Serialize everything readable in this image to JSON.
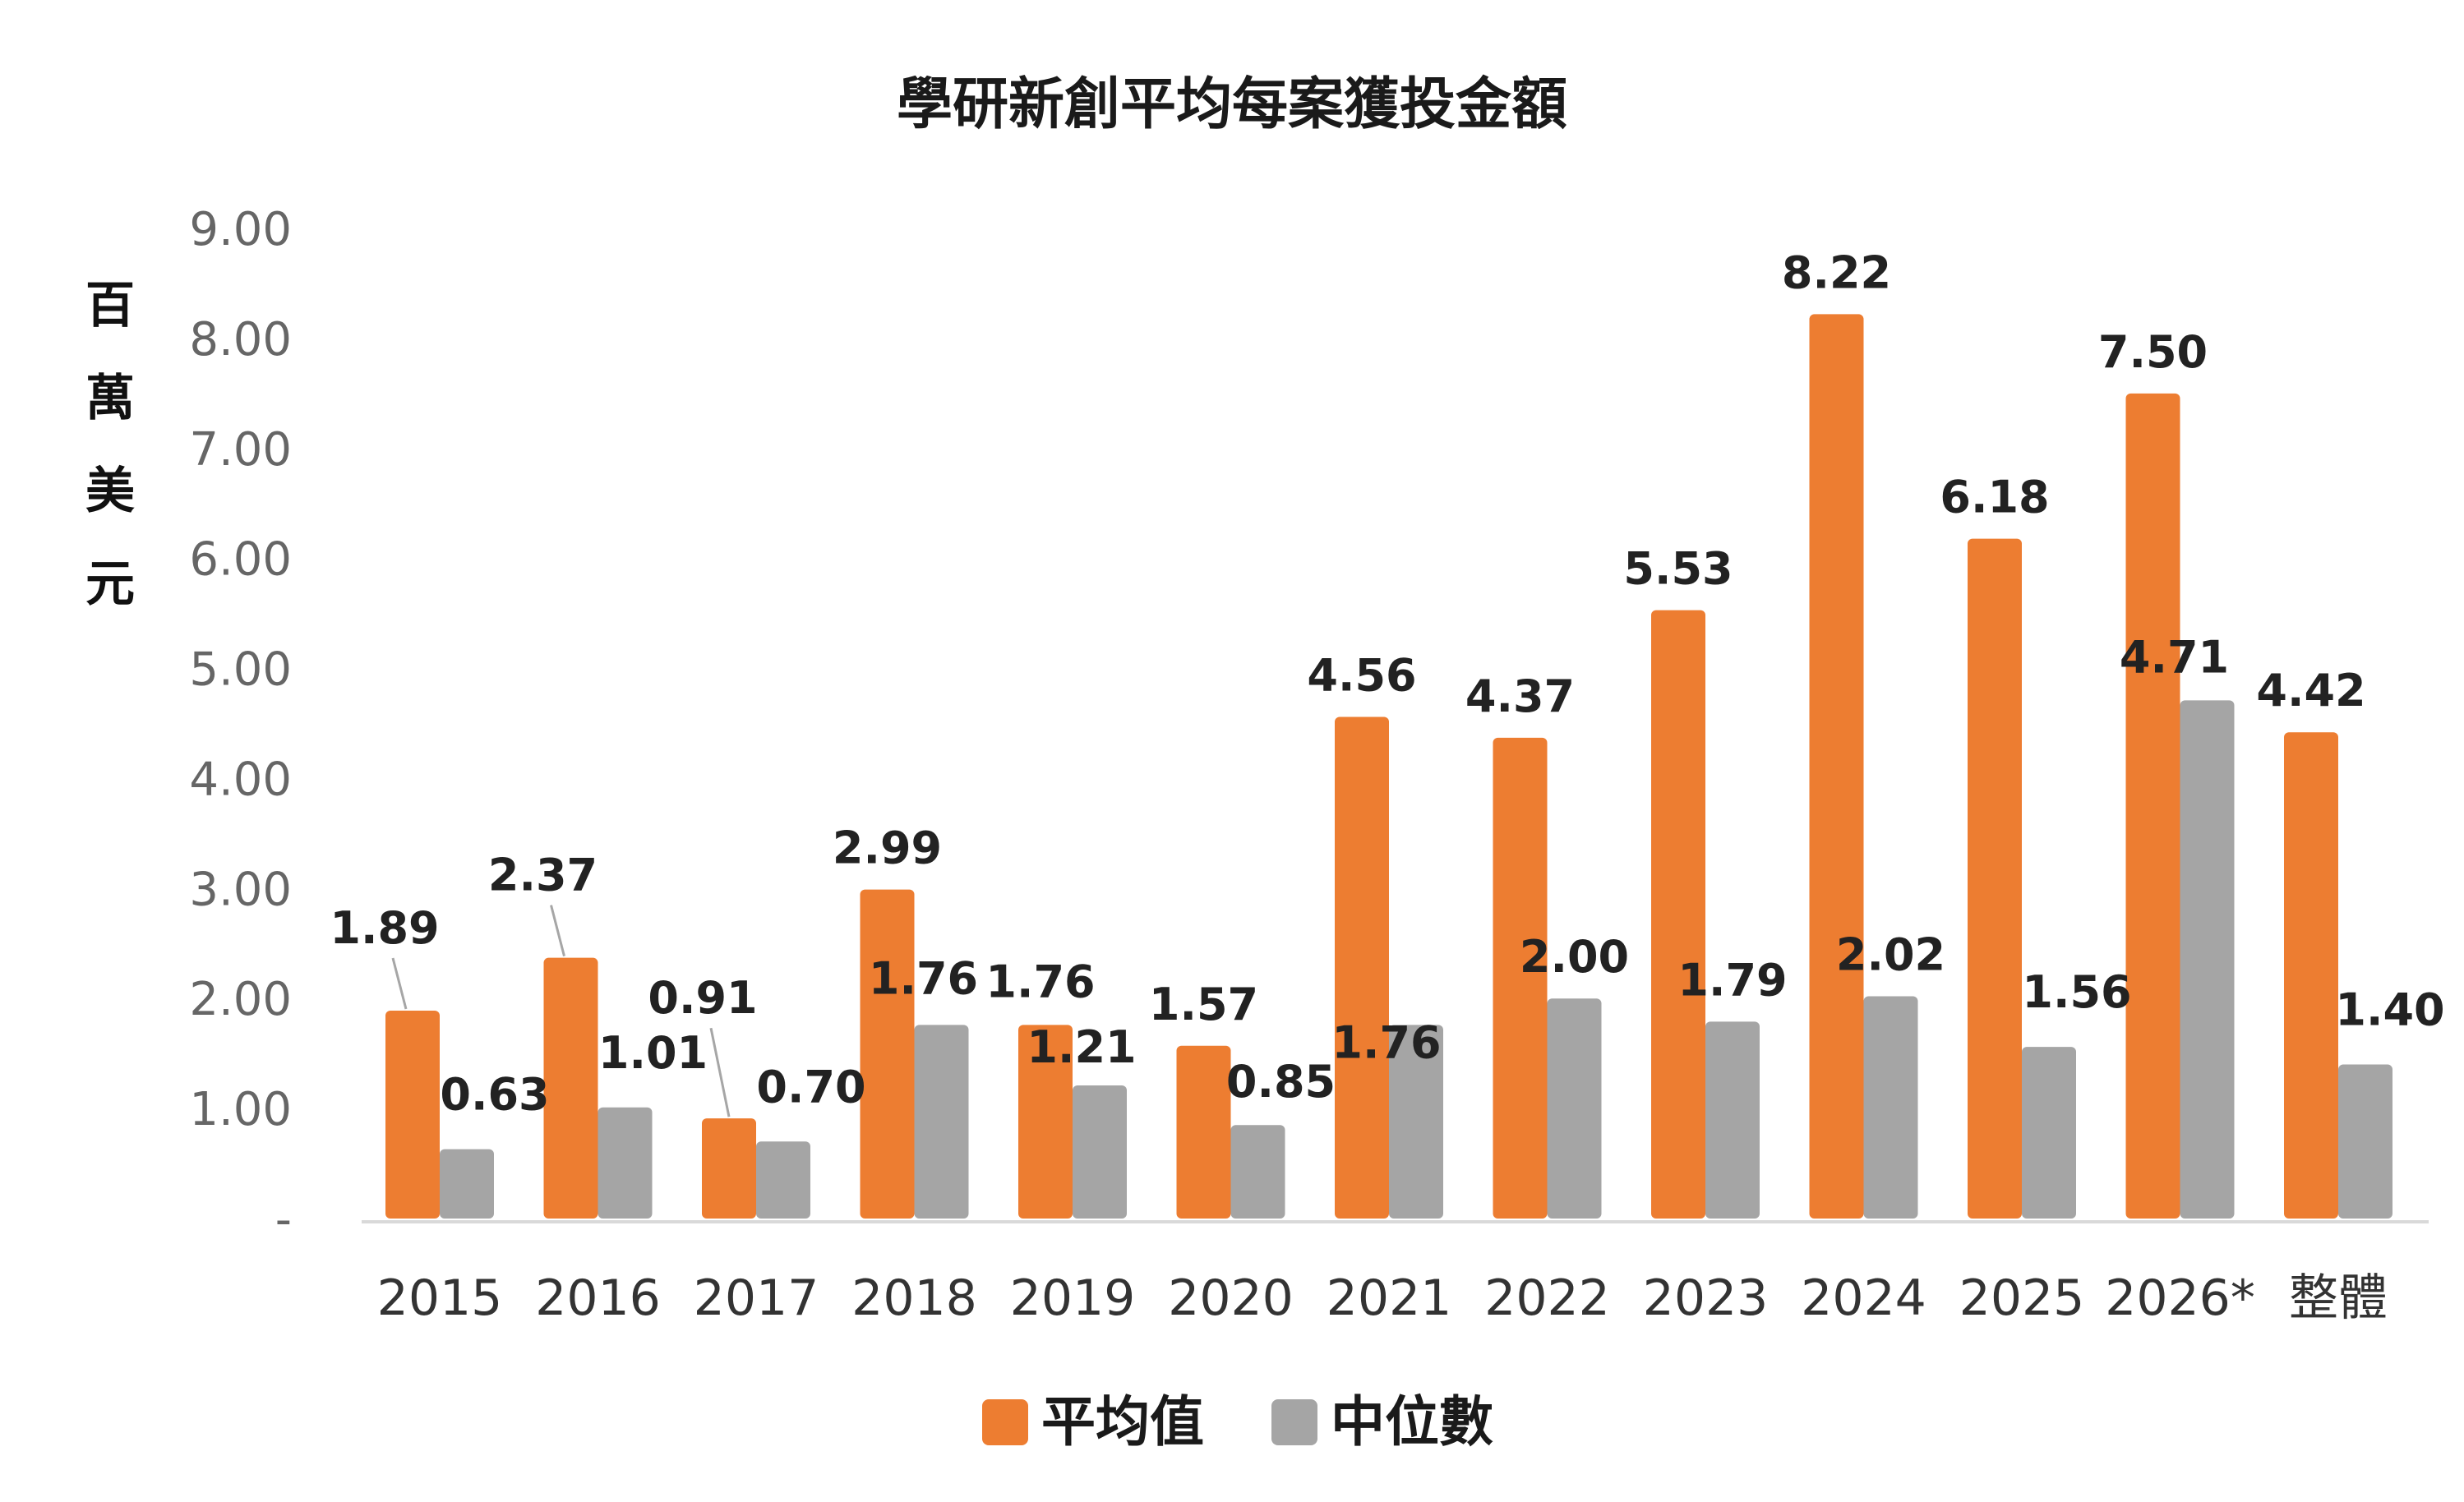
{
  "chart_data": {
    "type": "bar",
    "title": "學研新創平均每案獲投金額",
    "ylabel": "百萬美元",
    "xlabel": "",
    "categories": [
      "2015",
      "2016",
      "2017",
      "2018",
      "2019",
      "2020",
      "2021",
      "2022",
      "2023",
      "2024",
      "2025",
      "2026*",
      "整體"
    ],
    "series": [
      {
        "name": "平均值",
        "color": "#ED7D31",
        "values": [
          1.89,
          2.37,
          0.91,
          2.99,
          1.76,
          1.57,
          4.56,
          4.37,
          5.53,
          8.22,
          6.18,
          7.5,
          4.42
        ],
        "labels": [
          "1.89",
          "2.37",
          "0.91",
          "2.99",
          "1.76",
          "1.57",
          "4.56",
          "4.37",
          "5.53",
          "8.22",
          "6.18",
          "7.50",
          "4.42"
        ]
      },
      {
        "name": "中位數",
        "color": "#A5A5A5",
        "values": [
          0.63,
          1.01,
          0.7,
          1.76,
          1.21,
          0.85,
          1.76,
          2.0,
          1.79,
          2.02,
          1.56,
          4.71,
          1.4
        ],
        "labels": [
          "0.63",
          "1.01",
          "0.70",
          "1.76",
          "1.21",
          "0.85",
          "1.76",
          "2.00",
          "1.79",
          "2.02",
          "1.56",
          "4.71",
          "1.40"
        ]
      }
    ],
    "yticks": [
      "-",
      "1.00",
      "2.00",
      "3.00",
      "4.00",
      "5.00",
      "6.00",
      "7.00",
      "8.00",
      "9.00"
    ],
    "ylim": [
      0,
      9
    ],
    "grid": false,
    "legend": "bottom-center"
  }
}
